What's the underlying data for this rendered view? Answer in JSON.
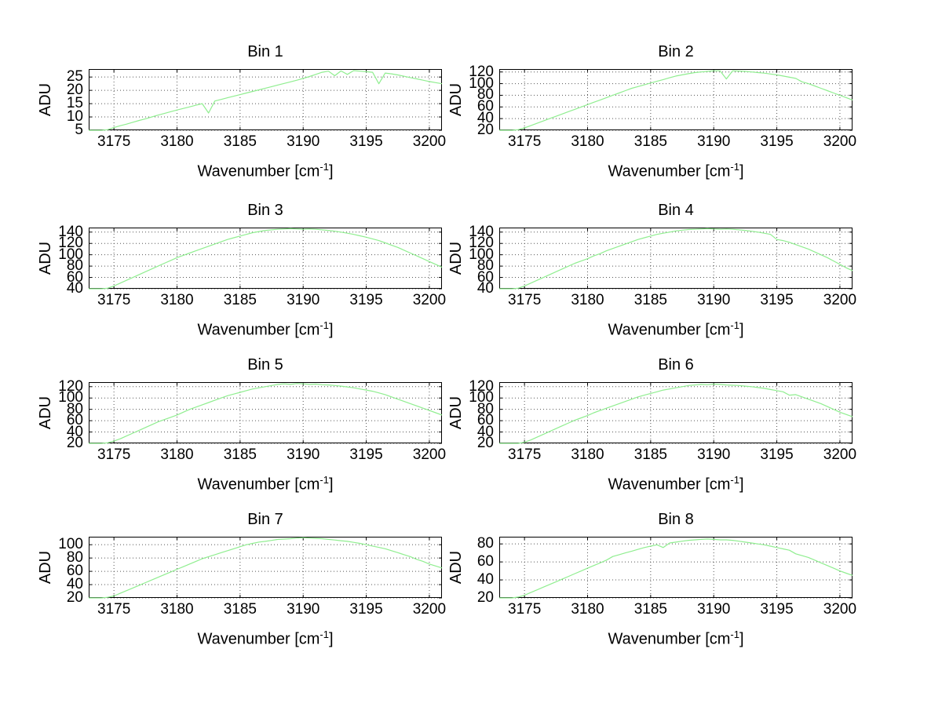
{
  "figure": {
    "background": "#ffffff",
    "line_color": "#90ee90",
    "grid_color": "#555555",
    "axis_color": "#000000",
    "ylabel": "ADU",
    "xlabel_pre": "Wavenumber [cm",
    "xlabel_sup": "-1",
    "xlabel_post": "]"
  },
  "chart_data": [
    {
      "type": "line",
      "title": "Bin 1",
      "xlabel": "Wavenumber [cm^-1]",
      "ylabel": "ADU",
      "xlim": [
        3173,
        3201
      ],
      "ylim": [
        5,
        28
      ],
      "xticks": [
        3175,
        3180,
        3185,
        3190,
        3195,
        3200
      ],
      "yticks": [
        5,
        10,
        15,
        20,
        25
      ],
      "x_start": 3173,
      "x_step": 0.5,
      "values": [
        5,
        5,
        5,
        5.2,
        6,
        6.7,
        7.3,
        8,
        8.7,
        9.3,
        10,
        10.7,
        11.3,
        12,
        12.6,
        13.2,
        13.8,
        14.4,
        15,
        11.5,
        16,
        16.6,
        17.2,
        17.8,
        18.4,
        19,
        19.6,
        20.2,
        20.8,
        21.4,
        22,
        22.6,
        23.2,
        23.8,
        24.5,
        25.2,
        26,
        26.8,
        27.2,
        25.5,
        27.3,
        26,
        27.4,
        27.2,
        27,
        26.8,
        22.5,
        26.5,
        26.2,
        25.8,
        25.3,
        24.8,
        24.3,
        23.8,
        23.3,
        22.9,
        22.5
      ]
    },
    {
      "type": "line",
      "title": "Bin 2",
      "xlabel": "Wavenumber [cm^-1]",
      "ylabel": "ADU",
      "xlim": [
        3173,
        3201
      ],
      "ylim": [
        20,
        125
      ],
      "xticks": [
        3175,
        3180,
        3185,
        3190,
        3195,
        3200
      ],
      "yticks": [
        20,
        40,
        60,
        80,
        100,
        120
      ],
      "x_start": 3173,
      "x_step": 0.5,
      "values": [
        20,
        20,
        20,
        21,
        24,
        28,
        32,
        36,
        40,
        44,
        48,
        52,
        56,
        60,
        64,
        68,
        72,
        76,
        80,
        84,
        88,
        92,
        95,
        98,
        101,
        104,
        107,
        110,
        113,
        115,
        117,
        119,
        120,
        121,
        122,
        122,
        108,
        122,
        121.5,
        121,
        120,
        119,
        118,
        116.5,
        115,
        113,
        111,
        109,
        103,
        100,
        96,
        92,
        88,
        84,
        80,
        76,
        72
      ]
    },
    {
      "type": "line",
      "title": "Bin 3",
      "xlabel": "Wavenumber [cm^-1]",
      "ylabel": "ADU",
      "xlim": [
        3173,
        3201
      ],
      "ylim": [
        40,
        148
      ],
      "xticks": [
        3175,
        3180,
        3185,
        3190,
        3195,
        3200
      ],
      "yticks": [
        40,
        60,
        80,
        100,
        120,
        140
      ],
      "x_start": 3173,
      "x_step": 0.5,
      "values": [
        40,
        40,
        40,
        41,
        45,
        50,
        55,
        60,
        65,
        70,
        75,
        80,
        85,
        90,
        95,
        99,
        103,
        107,
        111,
        115,
        119,
        123,
        127,
        130,
        133,
        136,
        139,
        141,
        143,
        144,
        145,
        145.5,
        146,
        145.5,
        145,
        145.5,
        145,
        144,
        143,
        141.5,
        140,
        138,
        136,
        133.5,
        131,
        128,
        125,
        121,
        117,
        113,
        108,
        103,
        98,
        93,
        88,
        83,
        78
      ]
    },
    {
      "type": "line",
      "title": "Bin 4",
      "xlabel": "Wavenumber [cm^-1]",
      "ylabel": "ADU",
      "xlim": [
        3173,
        3201
      ],
      "ylim": [
        40,
        148
      ],
      "xticks": [
        3175,
        3180,
        3185,
        3190,
        3195,
        3200
      ],
      "yticks": [
        40,
        60,
        80,
        100,
        120,
        140
      ],
      "x_start": 3173,
      "x_step": 0.5,
      "values": [
        40,
        40,
        40,
        41,
        45,
        50,
        55,
        60,
        65,
        70,
        75,
        80,
        85,
        89,
        93,
        98,
        102,
        107,
        111,
        115,
        119,
        123,
        127,
        130,
        133,
        136,
        138,
        140,
        142,
        143.5,
        144.5,
        145,
        145.5,
        146,
        145.5,
        145,
        145.5,
        145,
        144,
        143,
        141.5,
        140,
        138,
        136,
        127,
        125,
        122,
        118,
        114,
        110,
        105,
        100,
        95,
        89,
        83,
        77,
        72
      ]
    },
    {
      "type": "line",
      "title": "Bin 5",
      "xlabel": "Wavenumber [cm^-1]",
      "ylabel": "ADU",
      "xlim": [
        3173,
        3201
      ],
      "ylim": [
        20,
        128
      ],
      "xticks": [
        3175,
        3180,
        3185,
        3190,
        3195,
        3200
      ],
      "yticks": [
        20,
        40,
        60,
        80,
        100,
        120
      ],
      "x_start": 3173,
      "x_step": 0.5,
      "values": [
        20,
        20,
        20,
        21,
        24,
        28,
        33,
        38,
        43,
        48,
        53,
        58,
        62,
        66,
        70,
        75,
        80,
        84,
        88,
        92,
        96,
        100,
        104,
        107,
        110,
        113,
        116,
        118,
        120,
        122,
        124,
        125,
        124,
        125.5,
        125,
        124,
        124.5,
        123.5,
        123,
        122,
        121,
        119.5,
        118,
        116,
        114,
        112,
        109,
        106,
        102,
        98,
        94,
        90,
        86,
        82,
        78,
        74,
        70
      ]
    },
    {
      "type": "line",
      "title": "Bin 6",
      "xlabel": "Wavenumber [cm^-1]",
      "ylabel": "ADU",
      "xlim": [
        3173,
        3201
      ],
      "ylim": [
        20,
        128
      ],
      "xticks": [
        3175,
        3180,
        3185,
        3190,
        3195,
        3200
      ],
      "yticks": [
        20,
        40,
        60,
        80,
        100,
        120
      ],
      "x_start": 3173,
      "x_step": 0.5,
      "values": [
        20,
        20,
        20,
        20,
        22,
        26,
        31,
        36,
        41,
        46,
        51,
        56,
        61,
        65,
        69,
        74,
        78,
        82,
        86,
        90,
        94,
        98,
        102,
        105,
        108,
        111,
        114,
        116,
        118,
        120,
        122,
        123,
        124,
        123.5,
        124.5,
        124,
        123,
        122.5,
        122,
        121,
        120,
        118.5,
        117,
        115,
        113,
        111,
        105,
        106,
        102,
        98,
        94,
        90,
        85,
        80,
        75,
        71,
        67
      ]
    },
    {
      "type": "line",
      "title": "Bin 7",
      "xlabel": "Wavenumber [cm^-1]",
      "ylabel": "ADU",
      "xlim": [
        3173,
        3201
      ],
      "ylim": [
        20,
        112
      ],
      "xticks": [
        3175,
        3180,
        3185,
        3190,
        3195,
        3200
      ],
      "yticks": [
        20,
        40,
        60,
        80,
        100
      ],
      "x_start": 3173,
      "x_step": 0.5,
      "values": [
        20,
        20,
        20,
        21,
        23,
        27,
        31,
        35,
        39,
        43,
        47,
        51,
        55,
        59,
        63,
        67,
        71,
        75,
        79,
        82,
        85,
        88,
        91,
        94,
        97,
        100,
        102,
        104,
        105,
        106.5,
        108,
        108.5,
        109,
        110,
        110.5,
        110,
        109.5,
        109,
        108,
        107,
        106,
        105,
        103.5,
        102,
        100,
        98,
        96,
        94,
        91,
        88,
        85,
        82,
        78,
        75,
        71,
        68,
        65
      ]
    },
    {
      "type": "line",
      "title": "Bin 8",
      "xlabel": "Wavenumber [cm^-1]",
      "ylabel": "ADU",
      "xlim": [
        3173,
        3201
      ],
      "ylim": [
        20,
        88
      ],
      "xticks": [
        3175,
        3180,
        3185,
        3190,
        3195,
        3200
      ],
      "yticks": [
        20,
        40,
        60,
        80
      ],
      "x_start": 3173,
      "x_step": 0.5,
      "values": [
        20,
        20,
        20,
        21,
        23,
        26,
        29,
        32,
        35,
        38,
        41,
        44,
        47,
        50,
        53,
        56,
        59,
        62,
        66,
        68,
        70,
        72,
        74,
        76,
        77.5,
        79,
        76,
        81,
        82,
        83,
        84,
        84.5,
        85,
        85.5,
        85,
        84.5,
        84.5,
        84,
        83,
        82,
        81,
        80,
        79,
        77.5,
        76,
        74.5,
        73,
        69,
        67,
        65,
        62,
        59,
        56,
        53,
        50,
        47.5,
        45
      ]
    }
  ]
}
